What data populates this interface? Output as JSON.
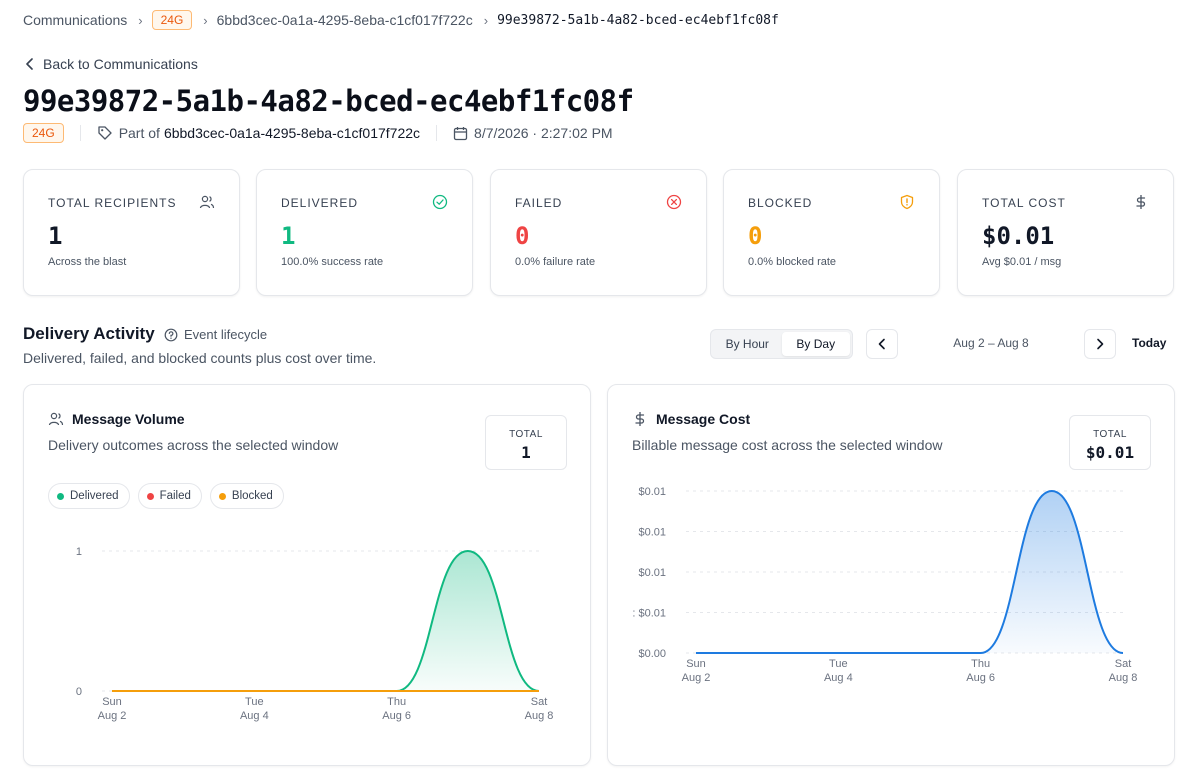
{
  "breadcrumb": {
    "root": "Communications",
    "badge": "24G",
    "parent": "6bbd3cec-0a1a-4295-8eba-c1cf017f722c",
    "current": "99e39872-5a1b-4a82-bced-ec4ebf1fc08f"
  },
  "back_label": "Back to Communications",
  "title": "99e39872-5a1b-4a82-bced-ec4ebf1fc08f",
  "meta": {
    "badge": "24G",
    "part_of_label": "Part of",
    "part_of_id": "6bbd3cec-0a1a-4295-8eba-c1cf017f722c",
    "datetime": "8/7/2026 · 2:27:02 PM"
  },
  "stats": [
    {
      "label": "TOTAL RECIPIENTS",
      "value": "1",
      "sub": "Across the blast",
      "icon": "users-icon",
      "color": "#111827"
    },
    {
      "label": "DELIVERED",
      "value": "1",
      "sub": "100.0% success rate",
      "icon": "check-circle-icon",
      "color": "#10b981"
    },
    {
      "label": "FAILED",
      "value": "0",
      "sub": "0.0% failure rate",
      "icon": "x-circle-icon",
      "color": "#ef4444"
    },
    {
      "label": "BLOCKED",
      "value": "0",
      "sub": "0.0% blocked rate",
      "icon": "shield-alert-icon",
      "color": "#f59e0b"
    },
    {
      "label": "TOTAL COST",
      "value": "$0.01",
      "sub": "Avg $0.01 / msg",
      "icon": "dollar-icon",
      "color": "#111827"
    }
  ],
  "activity": {
    "title": "Delivery Activity",
    "help": "Event lifecycle",
    "description": "Delivered, failed, and blocked counts plus cost over time.",
    "toggle": {
      "by_hour": "By Hour",
      "by_day": "By Day",
      "selected": "By Day"
    },
    "range": "Aug 2 – Aug 8",
    "today": "Today"
  },
  "volume_card": {
    "title": "Message Volume",
    "description": "Delivery outcomes across the selected window",
    "total_label": "TOTAL",
    "total_value": "1",
    "legend": [
      {
        "name": "Delivered",
        "color": "#10b981"
      },
      {
        "name": "Failed",
        "color": "#ef4444"
      },
      {
        "name": "Blocked",
        "color": "#f59e0b"
      }
    ]
  },
  "cost_card": {
    "title": "Message Cost",
    "description": "Billable message cost across the selected window",
    "total_label": "TOTAL",
    "total_value": "$0.01"
  },
  "chart_data": [
    {
      "type": "area",
      "x": [
        "Aug 2",
        "Aug 3",
        "Aug 4",
        "Aug 5",
        "Aug 6",
        "Aug 7",
        "Aug 8"
      ],
      "x_ticks": [
        {
          "day": "Sun",
          "date": "Aug 2"
        },
        {
          "day": "Tue",
          "date": "Aug 4"
        },
        {
          "day": "Thu",
          "date": "Aug 6"
        },
        {
          "day": "Sat",
          "date": "Aug 8"
        }
      ],
      "y_ticks": [
        "0",
        "1"
      ],
      "ylim": [
        0,
        1
      ],
      "series": [
        {
          "name": "Delivered",
          "color": "#10b981",
          "values": [
            0,
            0,
            0,
            0,
            0,
            1,
            0
          ]
        },
        {
          "name": "Failed",
          "color": "#ef4444",
          "values": [
            0,
            0,
            0,
            0,
            0,
            0,
            0
          ]
        },
        {
          "name": "Blocked",
          "color": "#f59e0b",
          "values": [
            0,
            0,
            0,
            0,
            0,
            0,
            0
          ]
        }
      ],
      "grid": true
    },
    {
      "type": "area",
      "x": [
        "Aug 2",
        "Aug 3",
        "Aug 4",
        "Aug 5",
        "Aug 6",
        "Aug 7",
        "Aug 8"
      ],
      "x_ticks": [
        {
          "day": "Sun",
          "date": "Aug 2"
        },
        {
          "day": "Tue",
          "date": "Aug 4"
        },
        {
          "day": "Thu",
          "date": "Aug 6"
        },
        {
          "day": "Sat",
          "date": "Aug 8"
        }
      ],
      "y_ticks": [
        "$0.00",
        ": $0.01",
        "$0.01",
        "$0.01",
        "$0.01"
      ],
      "ylim": [
        0,
        0.01
      ],
      "series": [
        {
          "color": "#1e7be0",
          "values": [
            0,
            0,
            0,
            0,
            0,
            0.01,
            0
          ]
        }
      ],
      "grid": true
    }
  ]
}
